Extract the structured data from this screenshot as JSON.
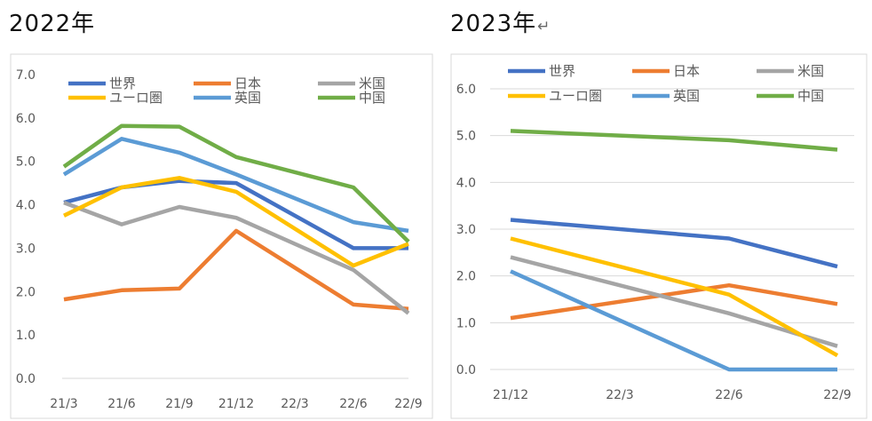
{
  "headings": {
    "left": "2022年",
    "right": "2023年",
    "right_mark": "↵"
  },
  "chart_data": [
    {
      "type": "line",
      "title": "2022年",
      "categories": [
        "21/3",
        "21/6",
        "21/9",
        "21/12",
        "22/3",
        "22/6",
        "22/9"
      ],
      "ylim": [
        0,
        7
      ],
      "yticks": [
        "0.0",
        "1.0",
        "2.0",
        "3.0",
        "4.0",
        "5.0",
        "6.0",
        "7.0"
      ],
      "grid": false,
      "legend_position": "top",
      "series": [
        {
          "name": "世界",
          "color": "#4472C4",
          "values": [
            4.05,
            4.4,
            4.55,
            4.5,
            null,
            3.0,
            3.0
          ]
        },
        {
          "name": "日本",
          "color": "#ED7D31",
          "values": [
            1.82,
            2.03,
            2.07,
            3.4,
            null,
            1.7,
            1.6
          ]
        },
        {
          "name": "米国",
          "color": "#A5A5A5",
          "values": [
            4.05,
            3.55,
            3.95,
            3.7,
            null,
            2.5,
            1.5
          ]
        },
        {
          "name": "ユーロ圏",
          "color": "#FFC000",
          "values": [
            3.75,
            4.4,
            4.62,
            4.3,
            null,
            2.6,
            3.1
          ]
        },
        {
          "name": "英国",
          "color": "#5B9BD5",
          "values": [
            4.7,
            5.52,
            5.2,
            4.7,
            null,
            3.6,
            3.4
          ]
        },
        {
          "name": "中国",
          "color": "#70AD47",
          "values": [
            4.88,
            5.82,
            5.8,
            5.1,
            null,
            4.4,
            3.15
          ]
        }
      ]
    },
    {
      "type": "line",
      "title": "2023年",
      "categories": [
        "21/12",
        "22/3",
        "22/6",
        "22/9"
      ],
      "ylim": [
        0,
        6
      ],
      "yticks": [
        "0.0",
        "1.0",
        "2.0",
        "3.0",
        "4.0",
        "5.0",
        "6.0"
      ],
      "grid": true,
      "legend_position": "top",
      "series": [
        {
          "name": "世界",
          "color": "#4472C4",
          "values": [
            3.2,
            null,
            2.8,
            2.2
          ]
        },
        {
          "name": "日本",
          "color": "#ED7D31",
          "values": [
            1.1,
            null,
            1.8,
            1.4
          ]
        },
        {
          "name": "米国",
          "color": "#A5A5A5",
          "values": [
            2.4,
            null,
            1.2,
            0.5
          ]
        },
        {
          "name": "ユーロ圏",
          "color": "#FFC000",
          "values": [
            2.8,
            null,
            1.6,
            0.3
          ]
        },
        {
          "name": "英国",
          "color": "#5B9BD5",
          "values": [
            2.1,
            null,
            0.0,
            0.0
          ]
        },
        {
          "name": "中国",
          "color": "#70AD47",
          "values": [
            5.1,
            null,
            4.9,
            4.7
          ]
        }
      ]
    }
  ]
}
